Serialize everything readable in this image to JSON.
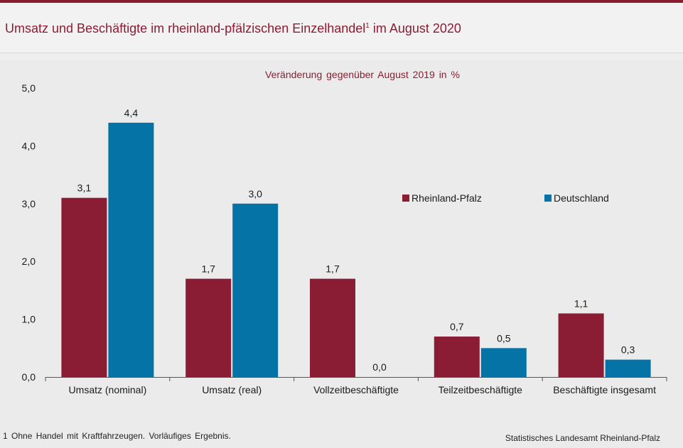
{
  "header": {
    "title": "Umsatz und Beschäftigte im rheinland-pfälzischen Einzelhandel",
    "title_sup": "1",
    "title_suffix": " im August 2020"
  },
  "footnote": "1 Ohne Handel mit Kraftfahrzeugen. Vorläufiges Ergebnis.",
  "source": "Statistisches Landesamt Rheinland-Pfalz",
  "colors": {
    "brand": "#8b1d33",
    "rheinland_pfalz": "#8a1c34",
    "deutschland": "#0573a5"
  },
  "chart_data": {
    "type": "bar",
    "subtitle": "Veränderung gegenüber August 2019 in %",
    "categories": [
      "Umsatz (nominal)",
      "Umsatz (real)",
      "Vollzeitbeschäftigte",
      "Teilzeitbeschäftigte",
      "Beschäftigte insgesamt"
    ],
    "series": [
      {
        "name": "Rheinland-Pfalz",
        "values": [
          3.1,
          1.7,
          1.7,
          0.7,
          1.1
        ],
        "labels": [
          "3,1",
          "1,7",
          "1,7",
          "0,7",
          "1,1"
        ]
      },
      {
        "name": "Deutschland",
        "values": [
          4.4,
          3.0,
          0.0,
          0.5,
          0.3
        ],
        "labels": [
          "4,4",
          "3,0",
          "0,0",
          "0,5",
          "0,3"
        ]
      }
    ],
    "ylim": [
      0,
      5
    ],
    "yticks": [
      "0,0",
      "1,0",
      "2,0",
      "3,0",
      "4,0",
      "5,0"
    ],
    "legend_position": "right-middle",
    "grid": false
  }
}
